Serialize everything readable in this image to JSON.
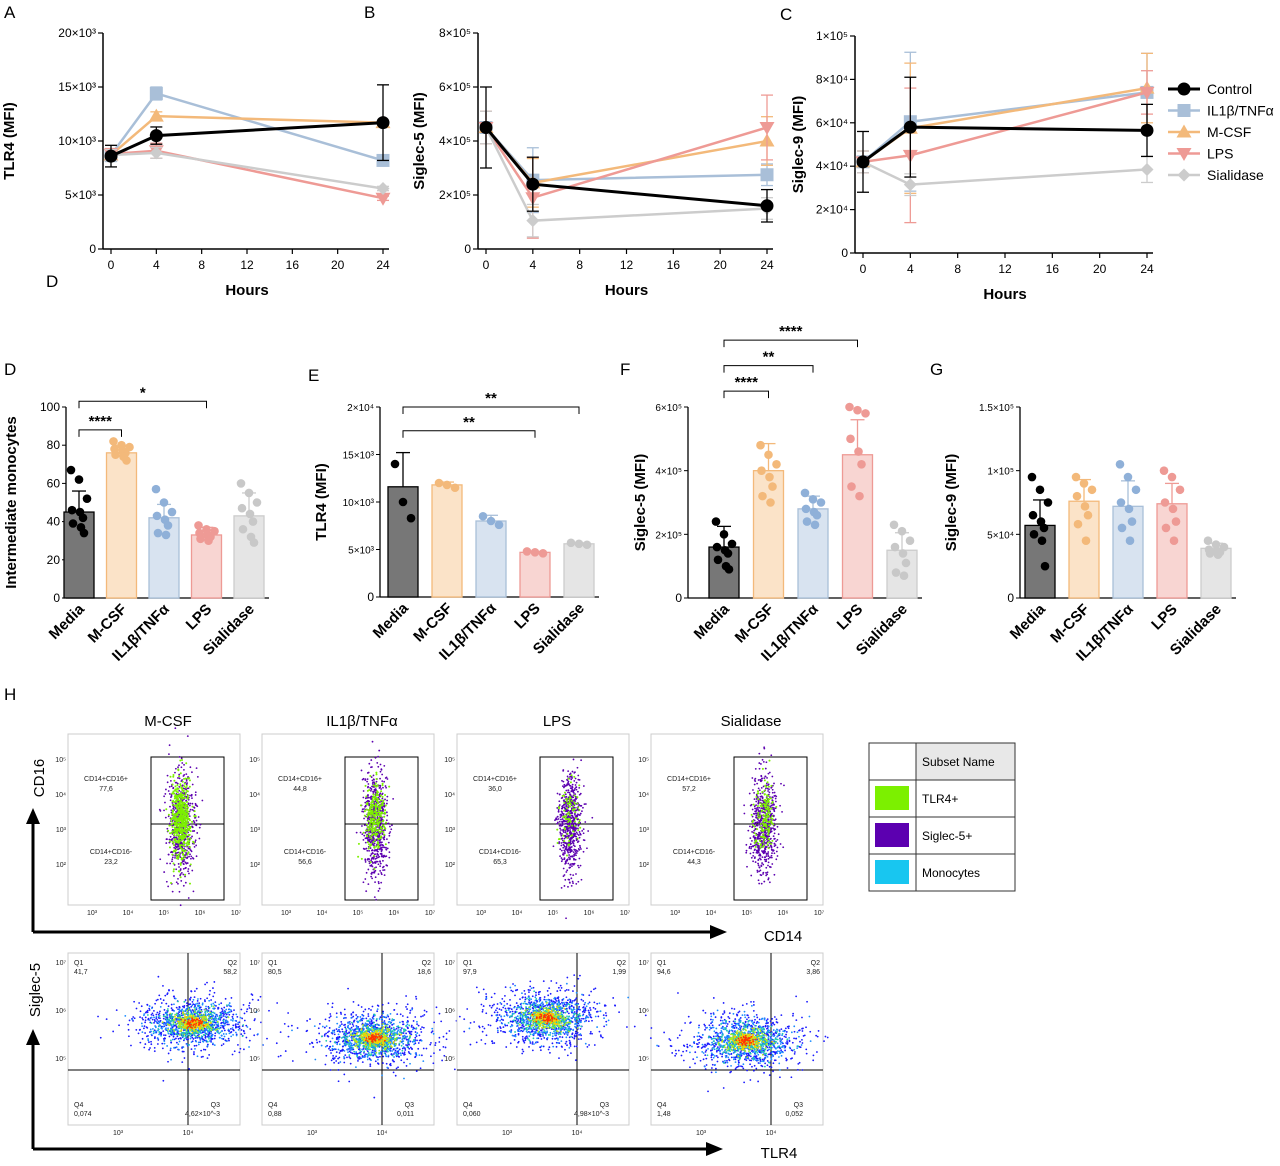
{
  "colors": {
    "control": "#000000",
    "il1b": "#a9bfd8",
    "mcsf": "#f3b97a",
    "lps": "#ee9a95",
    "sialidase": "#cccccc",
    "media_bar": "#777777",
    "mcsf_bar": "#fbe3c8",
    "il1b_bar": "#d8e3f0",
    "lps_bar": "#f8d5d2",
    "sialidase_bar": "#e5e5e5",
    "tlr4_gate": "#7cf000",
    "siglec5_gate": "#5c00b0",
    "monocytes_gate": "#18c6f0"
  },
  "panel_labels": {
    "A": "A",
    "B": "B",
    "C": "C",
    "D_top": "D",
    "D": "D",
    "E": "E",
    "F": "F",
    "G": "G",
    "H": "H"
  },
  "legend": [
    "Control",
    "IL1β/TNFα",
    "M-CSF",
    "LPS",
    "Sialidase"
  ],
  "chart_data": [
    {
      "id": "A",
      "type": "line",
      "title": "",
      "xlabel": "Hours",
      "ylabel": "TLR4 (MFI)",
      "x": [
        0,
        4,
        24
      ],
      "xticks": [
        "0",
        "4",
        "8",
        "12",
        "16",
        "20",
        "24"
      ],
      "xlim": [
        0,
        24
      ],
      "ylim": [
        0,
        20000
      ],
      "yticks": [
        "0",
        "5×10³",
        "10×10³",
        "15×10³",
        "20×10³"
      ],
      "series": [
        {
          "name": "Control",
          "values": [
            8600,
            10500,
            11700
          ],
          "err": [
            1000,
            800,
            3500
          ]
        },
        {
          "name": "IL1β/TNFα",
          "values": [
            8700,
            14400,
            8200
          ],
          "err": [
            600,
            600,
            500
          ]
        },
        {
          "name": "M-CSF",
          "values": [
            8700,
            12300,
            11700
          ],
          "err": [
            500,
            400,
            200
          ]
        },
        {
          "name": "LPS",
          "values": [
            8800,
            9100,
            4700
          ],
          "err": [
            500,
            700,
            200
          ]
        },
        {
          "name": "Sialidase",
          "values": [
            8700,
            8900,
            5600
          ],
          "err": [
            500,
            500,
            200
          ]
        }
      ]
    },
    {
      "id": "B",
      "type": "line",
      "title": "",
      "xlabel": "Hours",
      "ylabel": "Siglec-5 (MFI)",
      "x": [
        0,
        4,
        24
      ],
      "xticks": [
        "0",
        "4",
        "8",
        "12",
        "16",
        "20",
        "24"
      ],
      "xlim": [
        0,
        24
      ],
      "ylim": [
        0,
        800000
      ],
      "yticks": [
        "0",
        "2×10⁵",
        "4×10⁵",
        "6×10⁵",
        "8×10⁵"
      ],
      "series": [
        {
          "name": "Control",
          "values": [
            450000,
            240000,
            160000
          ],
          "err": [
            150000,
            100000,
            60000
          ]
        },
        {
          "name": "IL1β/TNFα",
          "values": [
            450000,
            255000,
            275000
          ],
          "err": [
            60000,
            120000,
            40000
          ]
        },
        {
          "name": "M-CSF",
          "values": [
            450000,
            245000,
            400000
          ],
          "err": [
            60000,
            90000,
            90000
          ]
        },
        {
          "name": "LPS",
          "values": [
            450000,
            190000,
            450000
          ],
          "err": [
            60000,
            150000,
            120000
          ]
        },
        {
          "name": "Sialidase",
          "values": [
            450000,
            105000,
            150000
          ],
          "err": [
            60000,
            60000,
            40000
          ]
        }
      ]
    },
    {
      "id": "C",
      "type": "line",
      "title": "",
      "xlabel": "Hours",
      "ylabel": "Siglec-9 (MFI)",
      "x": [
        0,
        4,
        24
      ],
      "xticks": [
        "0",
        "4",
        "8",
        "12",
        "16",
        "20",
        "24"
      ],
      "xlim": [
        0,
        24
      ],
      "ylim": [
        0,
        100000
      ],
      "yticks": [
        "0",
        "2×10⁴",
        "4×10⁴",
        "6×10⁴",
        "8×10⁴",
        "1×10⁵"
      ],
      "series": [
        {
          "name": "Control",
          "values": [
            42000,
            58000,
            56500
          ],
          "err": [
            14000,
            23000,
            12000
          ]
        },
        {
          "name": "IL1β/TNFα",
          "values": [
            42000,
            60500,
            74000
          ],
          "err": [
            5000,
            32000,
            18000
          ]
        },
        {
          "name": "M-CSF",
          "values": [
            42000,
            57500,
            76000
          ],
          "err": [
            5000,
            30000,
            16000
          ]
        },
        {
          "name": "LPS",
          "values": [
            42000,
            45000,
            74000
          ],
          "err": [
            5000,
            31000,
            10000
          ]
        },
        {
          "name": "Sialidase",
          "values": [
            42000,
            31500,
            38500
          ],
          "err": [
            5000,
            5000,
            6000
          ]
        }
      ]
    },
    {
      "id": "D",
      "type": "bar",
      "ylabel": "Intermediate monocytes",
      "categories": [
        "Media",
        "M-CSF",
        "IL1β/TNFα",
        "LPS",
        "Sialidase"
      ],
      "values": [
        45,
        76,
        42,
        33,
        43
      ],
      "err": [
        11,
        4,
        7,
        4,
        12
      ],
      "ylim": [
        0,
        100
      ],
      "yticks": [
        "0",
        "20",
        "40",
        "60",
        "80",
        "100"
      ],
      "points": [
        [
          67,
          62,
          52,
          46,
          45,
          42,
          39,
          37,
          34
        ],
        [
          82,
          80,
          79,
          78,
          77,
          76,
          75,
          74,
          72
        ],
        [
          57,
          50,
          45,
          43,
          41,
          38,
          34,
          33
        ],
        [
          38,
          36,
          35,
          34,
          33,
          32,
          31,
          30
        ],
        [
          60,
          55,
          50,
          47,
          44,
          40,
          36,
          32,
          29
        ]
      ],
      "significance": [
        {
          "from": 0,
          "to": 1,
          "label": "****",
          "level": 88
        },
        {
          "from": 0,
          "to": 3,
          "label": "*",
          "level": 103
        }
      ]
    },
    {
      "id": "E",
      "type": "bar",
      "ylabel": "TLR4 (MFI)",
      "categories": [
        "Media",
        "M-CSF",
        "IL1β/TNFα",
        "LPS",
        "Sialidase"
      ],
      "values": [
        11600,
        11800,
        8000,
        4700,
        5600
      ],
      "err": [
        3600,
        300,
        600,
        100,
        100
      ],
      "ylim": [
        0,
        20000
      ],
      "yticks": [
        "0",
        "5×10³",
        "10×10³",
        "15×10³",
        "2×10⁴"
      ],
      "points": [
        [
          14000,
          10000,
          8300
        ],
        [
          12000,
          11800,
          11500
        ],
        [
          8500,
          8000,
          7600
        ],
        [
          4800,
          4700,
          4600
        ],
        [
          5700,
          5600,
          5500
        ]
      ],
      "significance": [
        {
          "from": 0,
          "to": 3,
          "label": "**",
          "level": 17500
        },
        {
          "from": 0,
          "to": 4,
          "label": "**",
          "level": 20000
        }
      ]
    },
    {
      "id": "F",
      "type": "bar",
      "ylabel": "Siglec-5 (MFI)",
      "categories": [
        "Media",
        "M-CSF",
        "IL1β/TNFα",
        "LPS",
        "Sialidase"
      ],
      "values": [
        160000,
        400000,
        280000,
        450000,
        150000
      ],
      "err": [
        65000,
        85000,
        40000,
        110000,
        55000
      ],
      "ylim": [
        0,
        600000
      ],
      "yticks": [
        "0",
        "2×10⁵",
        "4×10⁵",
        "6×10⁵"
      ],
      "points": [
        [
          240000,
          200000,
          170000,
          160000,
          150000,
          140000,
          120000,
          100000,
          90000
        ],
        [
          480000,
          450000,
          420000,
          400000,
          380000,
          350000,
          320000,
          300000
        ],
        [
          330000,
          310000,
          300000,
          280000,
          270000,
          260000,
          240000,
          230000
        ],
        [
          600000,
          590000,
          580000,
          500000,
          460000,
          420000,
          350000,
          320000
        ],
        [
          230000,
          210000,
          180000,
          160000,
          140000,
          110000,
          80000,
          70000
        ]
      ],
      "significance": [
        {
          "from": 0,
          "to": 1,
          "label": "****",
          "level": 650000
        },
        {
          "from": 0,
          "to": 2,
          "label": "**",
          "level": 730000
        },
        {
          "from": 0,
          "to": 3,
          "label": "****",
          "level": 810000
        }
      ]
    },
    {
      "id": "G",
      "type": "bar",
      "ylabel": "Siglec-9 (MFI)",
      "categories": [
        "Media",
        "M-CSF",
        "IL1β/TNFα",
        "LPS",
        "Sialidase"
      ],
      "values": [
        57000,
        76000,
        72000,
        74000,
        39000
      ],
      "err": [
        20000,
        17000,
        20000,
        16000,
        4000
      ],
      "ylim": [
        0,
        150000
      ],
      "yticks": [
        "0",
        "5×10⁴",
        "1×10⁵",
        "1.5×10⁵"
      ],
      "points": [
        [
          95000,
          85000,
          75000,
          65000,
          60000,
          55000,
          50000,
          45000,
          25000
        ],
        [
          95000,
          90000,
          85000,
          80000,
          72000,
          65000,
          58000,
          45000
        ],
        [
          105000,
          95000,
          85000,
          75000,
          70000,
          60000,
          55000,
          45000
        ],
        [
          100000,
          95000,
          85000,
          75000,
          70000,
          60000,
          55000,
          45000
        ],
        [
          45000,
          42000,
          40000,
          38000,
          37000,
          36000,
          35000,
          34000
        ]
      ],
      "significance": []
    }
  ],
  "flow": {
    "columns": [
      "M-CSF",
      "IL1β/TNFα",
      "LPS",
      "Sialidase"
    ],
    "top_axis_y": "CD16",
    "top_axis_x": "CD14",
    "bottom_axis_y": "Siglec-5",
    "bottom_axis_x": "TLR4",
    "top_ticks_y": [
      "10⁵",
      "10⁴",
      "10³",
      "10²"
    ],
    "top_ticks_x": [
      "10³",
      "10⁴",
      "10⁵",
      "10⁶",
      "10⁷"
    ],
    "bottom_ticks_y": [
      "10⁷",
      "10⁶",
      "10⁵"
    ],
    "bottom_ticks_x": [
      "10³",
      "10⁴"
    ],
    "gate_upper_label": "CD14+CD16+",
    "gate_lower_label": "CD14+CD16-",
    "top_values": [
      {
        "upper": "77,6",
        "lower": "23,2"
      },
      {
        "upper": "44,8",
        "lower": "56,6"
      },
      {
        "upper": "36,0",
        "lower": "65,3"
      },
      {
        "upper": "57,2",
        "lower": "44,3"
      }
    ],
    "quadrants": [
      {
        "q1": "41,7",
        "q2": "58,2",
        "q3": "4,62×10^-3",
        "q4": "0,074"
      },
      {
        "q1": "80,5",
        "q2": "18,6",
        "q3": "0,011",
        "q4": "0,88"
      },
      {
        "q1": "97,9",
        "q2": "1,99",
        "q3": "4,98×10^-3",
        "q4": "0,060"
      },
      {
        "q1": "94,6",
        "q2": "3,86",
        "q3": "0,052",
        "q4": "1,48"
      }
    ],
    "quadrant_names": [
      "Q1",
      "Q2",
      "Q3",
      "Q4"
    ],
    "subset_table": {
      "header": "Subset Name",
      "rows": [
        "TLR4+",
        "Siglec-5+",
        "Monocytes"
      ]
    }
  }
}
